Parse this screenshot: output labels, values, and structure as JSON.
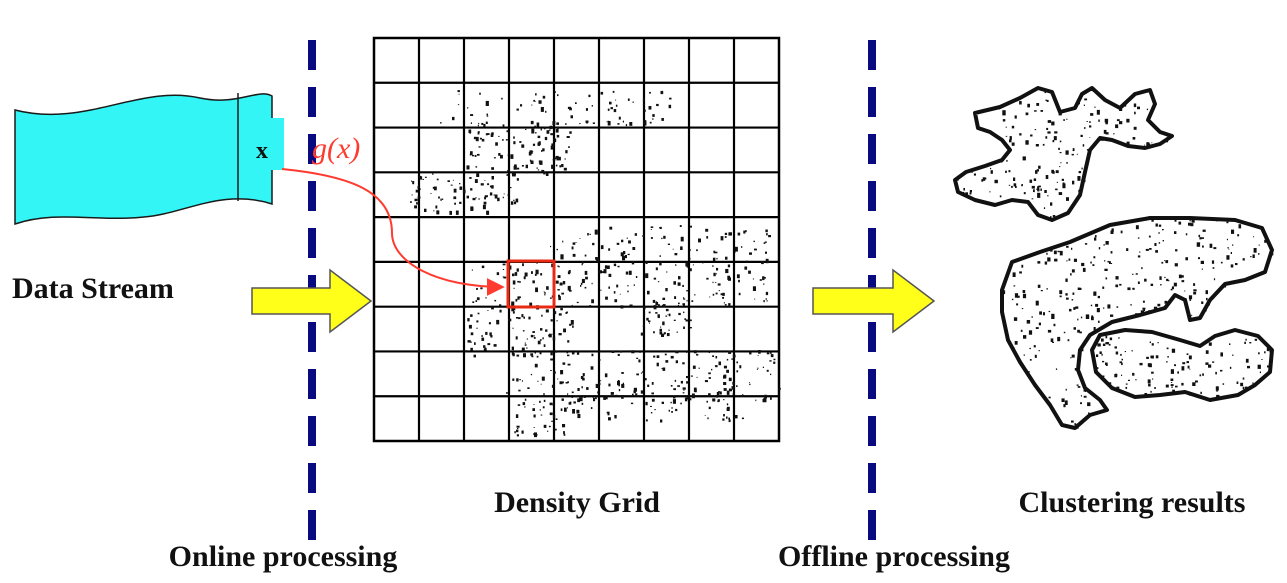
{
  "labels": {
    "data_stream": "Data Stream",
    "x_marker": "x",
    "mapping_function": "g(x)",
    "density_grid": "Density Grid",
    "clustering_results": "Clustering results",
    "online_processing": "Online processing",
    "offline_processing": "Offline processing"
  },
  "grid": {
    "rows": 9,
    "cols": 9,
    "highlight_row": 5,
    "highlight_col": 3
  },
  "colors": {
    "stream_fill": "#33f5f5",
    "arrow_fill": "#ffff1a",
    "divider": "#0a0a80",
    "mapping": "#ff3b30",
    "highlight": "#e82a14"
  }
}
